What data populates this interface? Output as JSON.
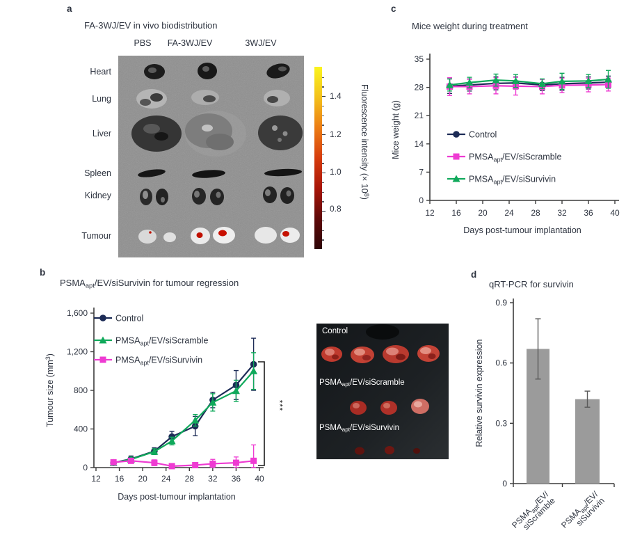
{
  "figure": {
    "panels": {
      "a": {
        "label": "a",
        "title": "FA-3WJ/EV in vivo biodistribution",
        "column_headers": [
          "PBS",
          "FA-3WJ/EV",
          "3WJ/EV"
        ],
        "organ_labels": [
          "Heart",
          "Lung",
          "Liver",
          "Spleen",
          "Kidney",
          "Tumour"
        ],
        "colorbar": {
          "label_text": "Fluorescence intensity (× 10⁸)",
          "label_parts": [
            {
              "t": "Fluorescence intensity (× 10"
            },
            {
              "t": "8",
              "sup": true
            },
            {
              "t": ")"
            }
          ],
          "ticks": [
            "1.4",
            "1.2",
            "1.0",
            "0.8"
          ],
          "gradient": [
            "#faf41f",
            "#f3c11b",
            "#ec7d14",
            "#d63c0d",
            "#a81508",
            "#5e0909",
            "#2e0607"
          ]
        }
      },
      "b": {
        "label": "b",
        "title_text": "PSMAapt/EV/siSurvivin for tumour regression",
        "title_parts": [
          {
            "t": "PSMA"
          },
          {
            "t": "apt",
            "sub": true
          },
          {
            "t": "/EV/siSurvivin for tumour regression"
          }
        ],
        "photo_labels": [
          [
            {
              "t": "Control"
            }
          ],
          [
            {
              "t": "PSMA"
            },
            {
              "t": "apt",
              "sub": true
            },
            {
              "t": "/EV/siScramble"
            }
          ],
          [
            {
              "t": "PSMA"
            },
            {
              "t": "apt",
              "sub": true
            },
            {
              "t": "/EV/siSurvivin"
            }
          ]
        ]
      },
      "c": {
        "label": "c",
        "title": "Mice weight during treatment"
      },
      "d": {
        "label": "d",
        "title": "qRT-PCR for survivin"
      }
    }
  },
  "chart_data": [
    {
      "id": "tumour_size",
      "type": "line",
      "title": "PSMAapt/EV/siSurvivin for tumour regression",
      "xlabel": "Days post-tumour implantation",
      "ylabel": "Tumour size (mm³)",
      "ylabel_parts": [
        {
          "t": "Tumour size (mm"
        },
        {
          "t": "3",
          "sup": true
        },
        {
          "t": ")"
        }
      ],
      "xlim": [
        12,
        40
      ],
      "ylim": [
        0,
        1600
      ],
      "xticks": [
        12,
        16,
        20,
        24,
        28,
        32,
        36,
        40
      ],
      "yticks": [
        0,
        400,
        800,
        1200,
        1600
      ],
      "legend_position": "top-left-inside",
      "grid": false,
      "x": [
        15,
        18,
        22,
        25,
        29,
        32,
        36,
        39
      ],
      "series": [
        {
          "name": "Control",
          "name_parts": [
            {
              "t": "Control"
            }
          ],
          "marker": "circle",
          "color": "#1c2b56",
          "values": [
            50,
            90,
            170,
            320,
            430,
            700,
            855,
            1070
          ],
          "errors": [
            25,
            30,
            35,
            55,
            100,
            80,
            150,
            270
          ]
        },
        {
          "name": "PMSAapt/EV/siScramble",
          "name_parts": [
            {
              "t": "PMSA"
            },
            {
              "t": "apt",
              "sub": true
            },
            {
              "t": "/EV/siScramble"
            }
          ],
          "marker": "triangle",
          "color": "#10a95b",
          "values": [
            50,
            85,
            165,
            275,
            490,
            675,
            795,
            1000
          ],
          "errors": [
            20,
            25,
            30,
            40,
            60,
            90,
            110,
            190
          ]
        },
        {
          "name": "PMSAapt/EV/siSurvivin",
          "name_parts": [
            {
              "t": "PMSA"
            },
            {
              "t": "apt",
              "sub": true
            },
            {
              "t": "/EV/siSurvivin"
            }
          ],
          "marker": "square",
          "color": "#ee3bd2",
          "values": [
            55,
            70,
            50,
            15,
            25,
            40,
            50,
            70
          ],
          "errors": [
            20,
            25,
            30,
            20,
            25,
            45,
            60,
            165
          ]
        }
      ],
      "annotation": {
        "text": "***"
      }
    },
    {
      "id": "mice_weight",
      "type": "line",
      "title": "Mice weight during treatment",
      "xlabel": "Days post-tumour implantation",
      "ylabel": "Mice weight (g)",
      "ylabel_parts": [
        {
          "t": "Mice weight (g)"
        }
      ],
      "xlim": [
        12,
        40
      ],
      "ylim": [
        0,
        35
      ],
      "xticks": [
        12,
        16,
        20,
        24,
        28,
        32,
        36,
        40
      ],
      "yticks": [
        0,
        7,
        14,
        21,
        28,
        35
      ],
      "legend_position": "center-left-inside",
      "grid": false,
      "x": [
        15,
        18,
        22,
        25,
        29,
        32,
        36,
        39
      ],
      "series": [
        {
          "name": "Control",
          "name_parts": [
            {
              "t": "Control"
            }
          ],
          "marker": "circle",
          "color": "#1c2b56",
          "values": [
            28.3,
            28.6,
            29.0,
            29.1,
            28.6,
            28.9,
            29.1,
            29.3
          ],
          "errors": [
            1.8,
            1.5,
            1.6,
            1.5,
            1.4,
            1.6,
            1.5,
            1.5
          ]
        },
        {
          "name": "PMSAapt/EV/siScramble",
          "name_parts": [
            {
              "t": "PMSA"
            },
            {
              "t": "apt",
              "sub": true
            },
            {
              "t": "/EV/siScramble"
            }
          ],
          "marker": "square",
          "color": "#ee3bd2",
          "values": [
            28.2,
            28.2,
            28.4,
            28.3,
            28.2,
            28.5,
            28.6,
            28.7
          ],
          "errors": [
            2.2,
            1.8,
            2.0,
            2.2,
            1.8,
            1.8,
            1.7,
            1.6
          ]
        },
        {
          "name": "PMSAapt/EV/siSurvivin",
          "name_parts": [
            {
              "t": "PMSA"
            },
            {
              "t": "apt",
              "sub": true
            },
            {
              "t": "/EV/siSurvivin"
            }
          ],
          "marker": "triangle",
          "color": "#10a95b",
          "values": [
            28.6,
            29.2,
            29.8,
            29.6,
            28.9,
            29.5,
            29.6,
            30.0
          ],
          "errors": [
            1.5,
            1.3,
            1.5,
            1.6,
            1.2,
            2.0,
            1.6,
            2.2
          ]
        }
      ]
    },
    {
      "id": "qrt_pcr",
      "type": "bar",
      "title": "qRT-PCR for survivin",
      "ylabel": "Relative survivin expression",
      "ylabel_parts": [
        {
          "t": "Relative survivin expression"
        }
      ],
      "ylim": [
        0,
        0.9
      ],
      "yticks": [
        0,
        0.3,
        0.6,
        0.9
      ],
      "grid": false,
      "bar_color": "#9b9b9b",
      "error_color": "#5a5a5a",
      "categories": [
        {
          "text": "PSMAapt/EV/siScramble",
          "lines": [
            [
              {
                "t": "PSMA"
              },
              {
                "t": "apt",
                "sub": true
              },
              {
                "t": "/EV/"
              }
            ],
            [
              {
                "t": "siScramble"
              }
            ]
          ]
        },
        {
          "text": "PSMAapt/EV/siSurvivin",
          "lines": [
            [
              {
                "t": "PSMA"
              },
              {
                "t": "apt",
                "sub": true
              },
              {
                "t": "/EV/"
              }
            ],
            [
              {
                "t": "siSurvivin"
              }
            ]
          ]
        }
      ],
      "values": [
        0.67,
        0.42
      ],
      "errors": [
        0.15,
        0.04
      ]
    }
  ]
}
